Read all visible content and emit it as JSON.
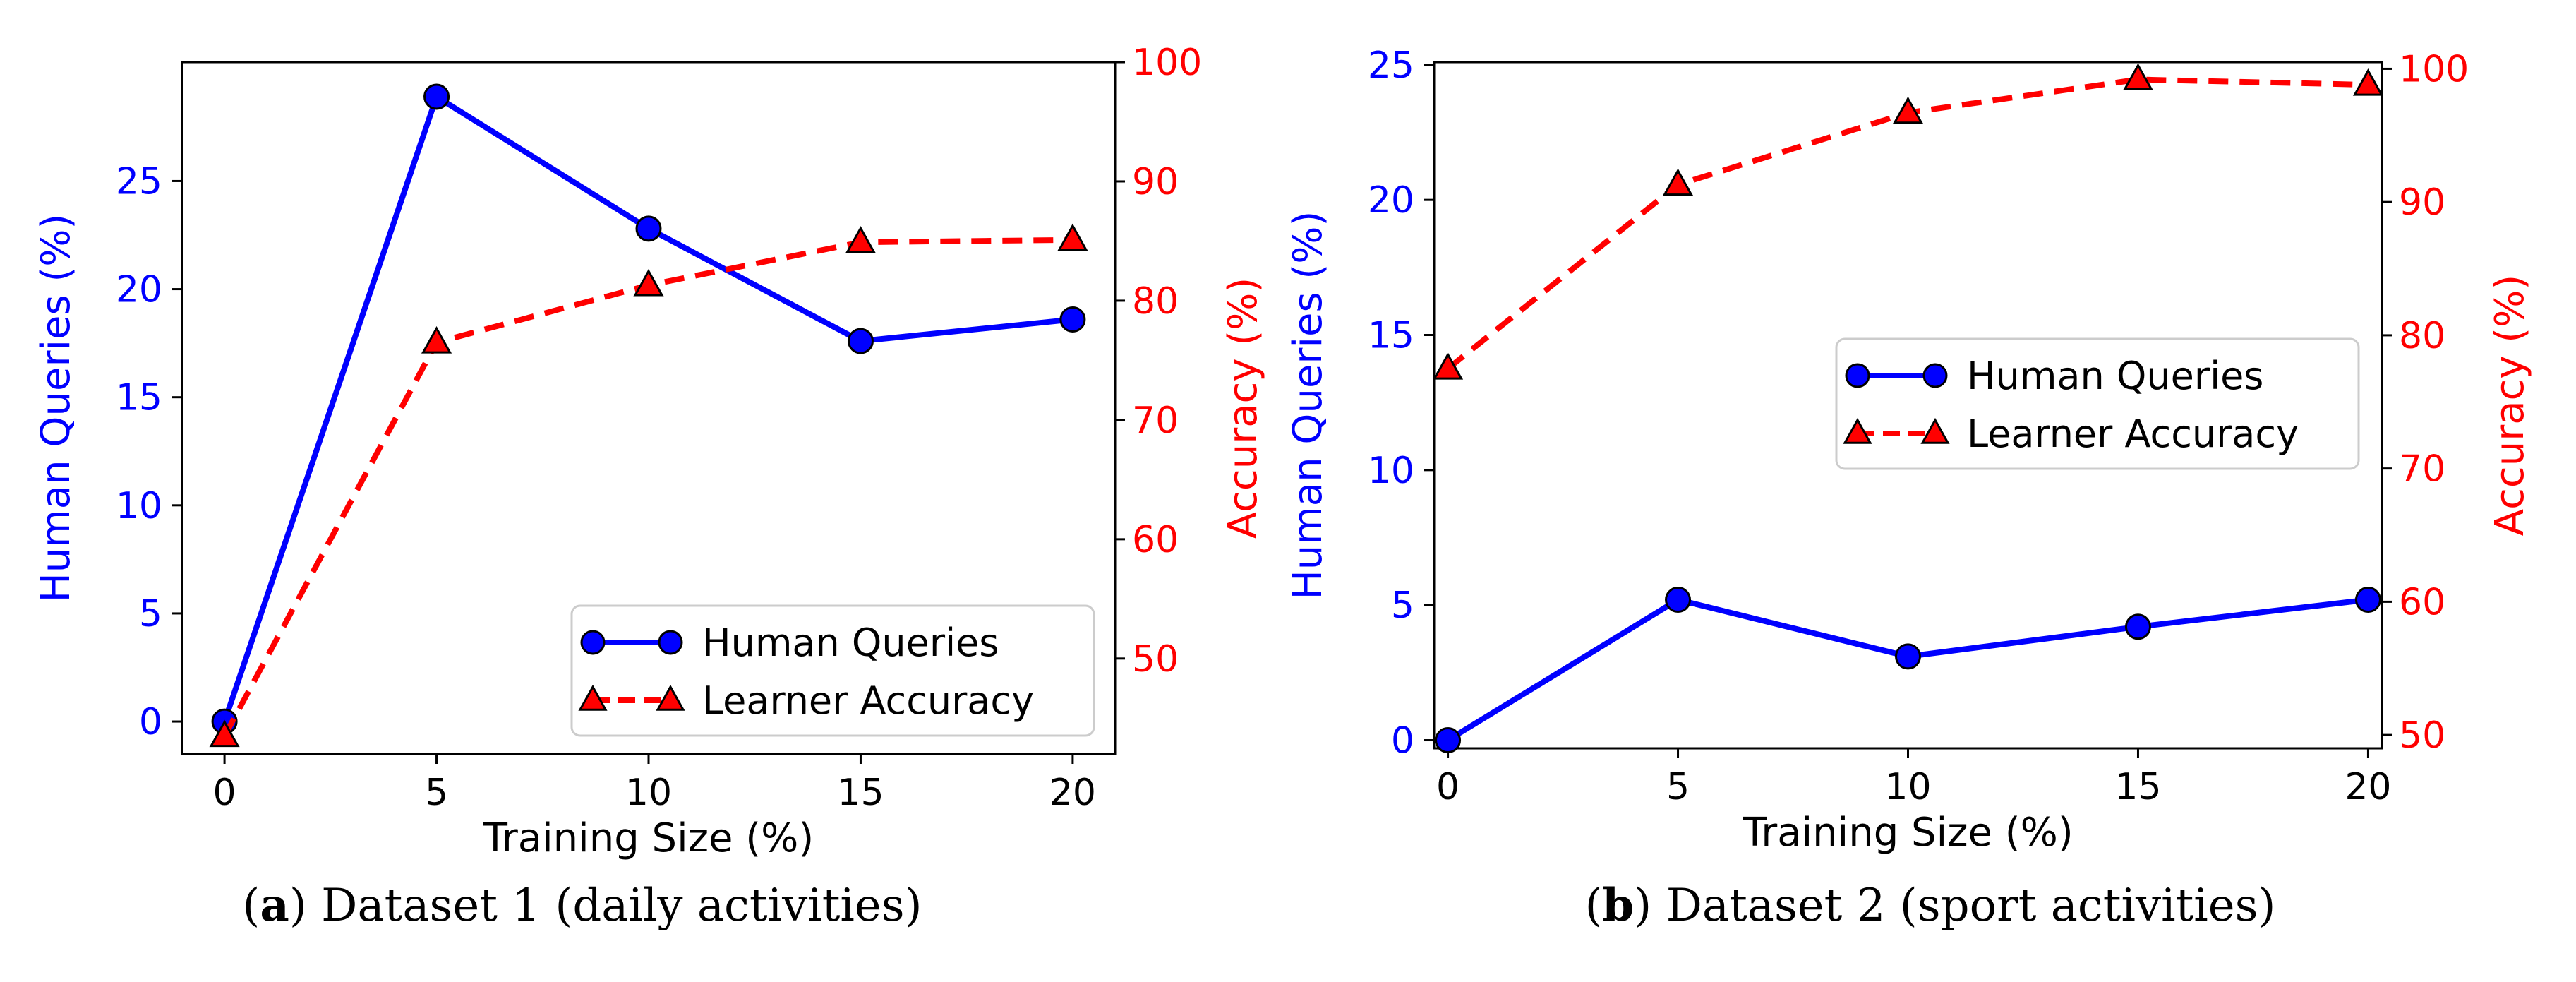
{
  "chart_data": [
    {
      "id": "a",
      "type": "line",
      "caption_letter": "a",
      "caption_text": ") Dataset 1 (daily activities)",
      "caption_open": "(",
      "xlabel": "Training Size (%)",
      "ylabel_left": "Human Queries (%)",
      "ylabel_right": "Accuracy (%)",
      "x": [
        0,
        5,
        10,
        15,
        20
      ],
      "xlim": [
        -1,
        21
      ],
      "xticks": [
        0,
        5,
        10,
        15,
        20
      ],
      "ylim_left": [
        -1.5,
        30.5
      ],
      "yticks_left": [
        0,
        5,
        10,
        15,
        20,
        25
      ],
      "ylim_right": [
        42,
        100
      ],
      "yticks_right": [
        50,
        60,
        70,
        80,
        90,
        100
      ],
      "legend_position": "lower-right",
      "series": [
        {
          "name": "Human Queries",
          "axis": "left",
          "color": "#0000ff",
          "style": "solid",
          "marker": "circle",
          "values": [
            0,
            28.9,
            22.8,
            17.6,
            18.6
          ]
        },
        {
          "name": "Learner Accuracy",
          "axis": "right",
          "color": "#ff0000",
          "style": "dashed",
          "marker": "triangle",
          "values": [
            43.5,
            76.5,
            81.3,
            84.9,
            85.1
          ]
        }
      ]
    },
    {
      "id": "b",
      "type": "line",
      "caption_letter": "b",
      "caption_text": ") Dataset 2 (sport activities)",
      "caption_open": "(",
      "xlabel": "Training Size (%)",
      "ylabel_left": "Human Queries (%)",
      "ylabel_right": "Accuracy (%)",
      "x": [
        0,
        5,
        10,
        15,
        20
      ],
      "xlim": [
        -0.3,
        20.3
      ],
      "xticks": [
        0,
        5,
        10,
        15,
        20
      ],
      "ylim_left": [
        -0.3,
        25.1
      ],
      "yticks_left": [
        0,
        5,
        10,
        15,
        20,
        25
      ],
      "ylim_right": [
        49,
        100.5
      ],
      "yticks_right": [
        50,
        60,
        70,
        80,
        90,
        100
      ],
      "legend_position": "center-right",
      "series": [
        {
          "name": "Human Queries",
          "axis": "left",
          "color": "#0000ff",
          "style": "solid",
          "marker": "circle",
          "values": [
            0,
            5.2,
            3.1,
            4.2,
            5.2
          ]
        },
        {
          "name": "Learner Accuracy",
          "axis": "right",
          "color": "#ff0000",
          "style": "dashed",
          "marker": "triangle",
          "values": [
            77.5,
            91.3,
            96.7,
            99.2,
            98.8
          ]
        }
      ]
    }
  ]
}
